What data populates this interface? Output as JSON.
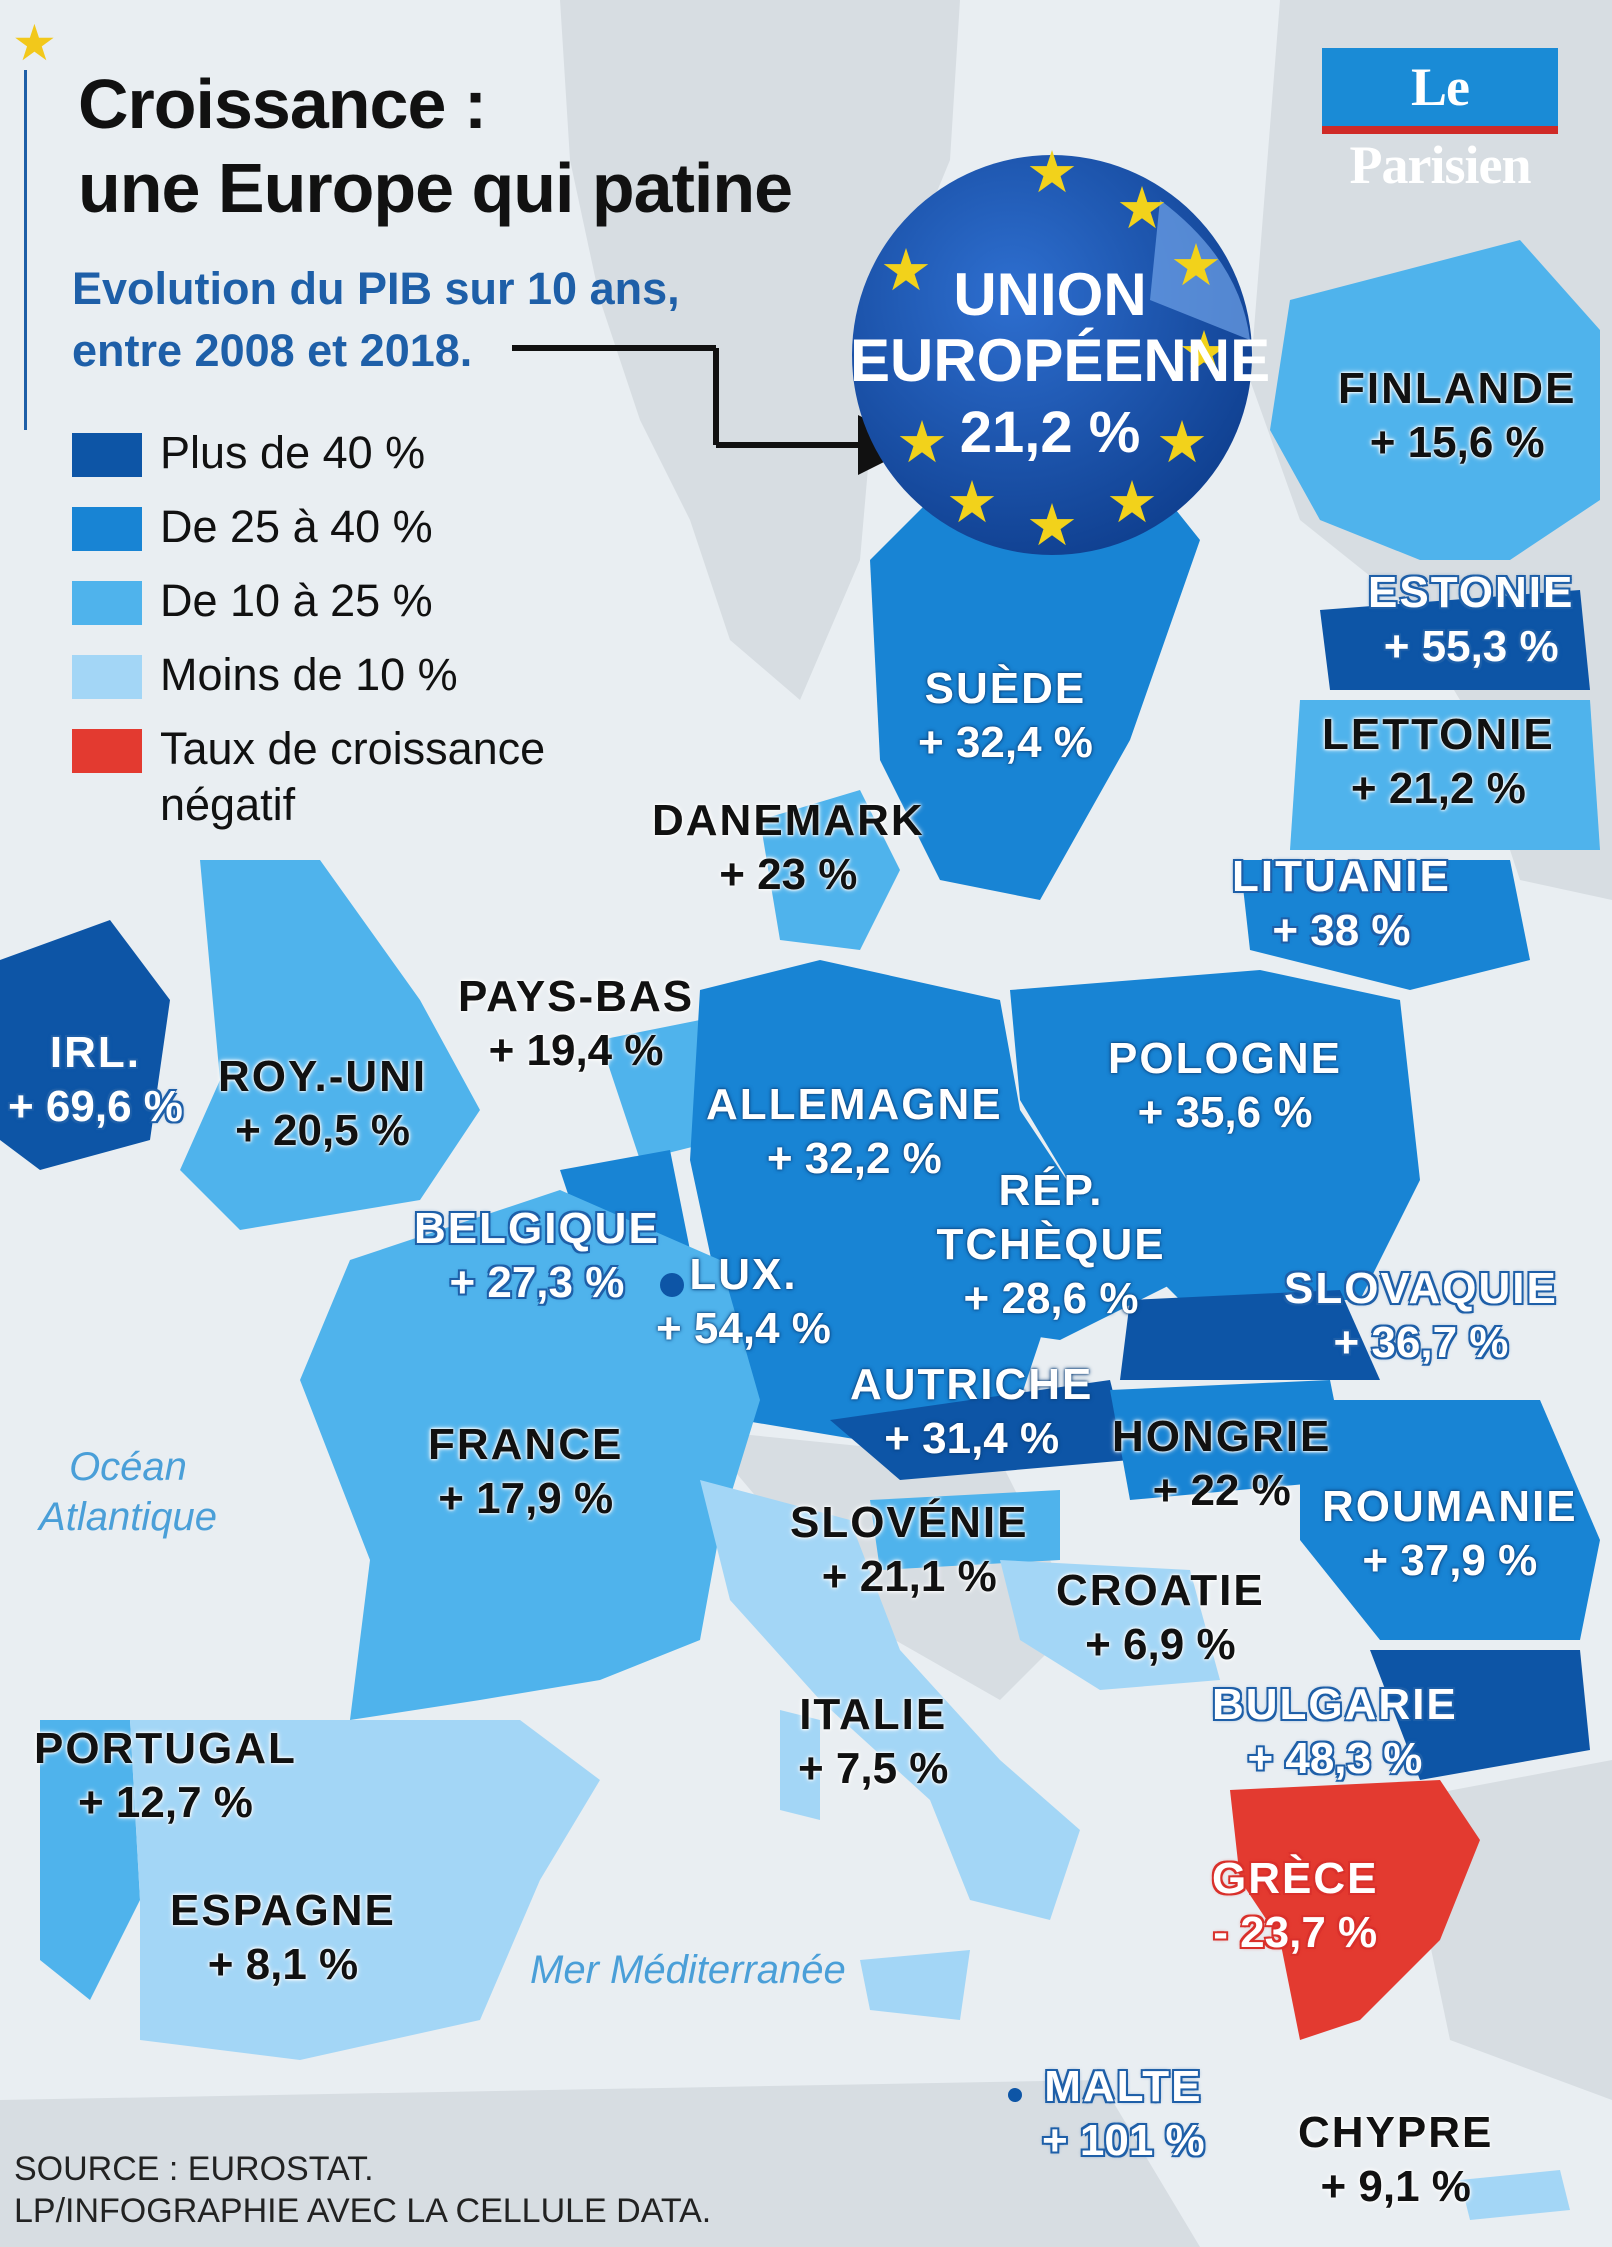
{
  "title_line1": "Croissance :",
  "title_line2": "une Europe qui patine",
  "subtitle_line1": "Evolution du PIB sur 10 ans,",
  "subtitle_line2": "entre 2008 et 2018.",
  "logo_text": "Le Parisien",
  "legend": [
    {
      "label": "Plus de 40 %",
      "color": "#0d55a6"
    },
    {
      "label": "De 25 à 40 %",
      "color": "#1884d4"
    },
    {
      "label": "De 10 à 25 %",
      "color": "#4fb3ec"
    },
    {
      "label": "Moins de 10 %",
      "color": "#a3d6f6"
    },
    {
      "label": "Taux de croissance négatif",
      "color": "#e33a30"
    }
  ],
  "eu": {
    "line1": "UNION",
    "line2": "EUROPÉENNE",
    "value": "21,2 %"
  },
  "seas": {
    "ocean_line1": "Océan",
    "ocean_line2": "Atlantique",
    "mediterranean": "Mer Méditerranée"
  },
  "countries": [
    {
      "name": "FINLANDE",
      "value": "+ 15,6 %",
      "growth": 15.6
    },
    {
      "name": "ESTONIE",
      "value": "+ 55,3 %",
      "growth": 55.3
    },
    {
      "name": "LETTONIE",
      "value": "+ 21,2 %",
      "growth": 21.2
    },
    {
      "name": "LITUANIE",
      "value": "+ 38 %",
      "growth": 38
    },
    {
      "name": "SUÈDE",
      "value": "+ 32,4 %",
      "growth": 32.4
    },
    {
      "name": "DANEMARK",
      "value": "+ 23 %",
      "growth": 23
    },
    {
      "name": "PAYS-BAS",
      "value": "+ 19,4 %",
      "growth": 19.4
    },
    {
      "name": "IRL.",
      "value": "+ 69,6 %",
      "growth": 69.6
    },
    {
      "name": "ROY.-UNI",
      "value": "+ 20,5 %",
      "growth": 20.5
    },
    {
      "name": "ALLEMAGNE",
      "value": "+ 32,2 %",
      "growth": 32.2
    },
    {
      "name": "POLOGNE",
      "value": "+ 35,6 %",
      "growth": 35.6
    },
    {
      "name": "BELGIQUE",
      "value": "+ 27,3 %",
      "growth": 27.3
    },
    {
      "name": "LUX.",
      "value": "+ 54,4 %",
      "growth": 54.4
    },
    {
      "name": "RÉP. TCHÈQUE",
      "value": "+ 28,6 %",
      "growth": 28.6
    },
    {
      "name": "SLOVAQUIE",
      "value": "+ 36,7 %",
      "growth": 36.7
    },
    {
      "name": "AUTRICHE",
      "value": "+ 31,4 %",
      "growth": 31.4
    },
    {
      "name": "HONGRIE",
      "value": "+ 22 %",
      "growth": 22
    },
    {
      "name": "FRANCE",
      "value": "+ 17,9 %",
      "growth": 17.9
    },
    {
      "name": "ROUMANIE",
      "value": "+ 37,9 %",
      "growth": 37.9
    },
    {
      "name": "SLOVÉNIE",
      "value": "+ 21,1 %",
      "growth": 21.1
    },
    {
      "name": "CROATIE",
      "value": "+ 6,9 %",
      "growth": 6.9
    },
    {
      "name": "BULGARIE",
      "value": "+ 48,3 %",
      "growth": 48.3
    },
    {
      "name": "ITALIE",
      "value": "+ 7,5 %",
      "growth": 7.5
    },
    {
      "name": "PORTUGAL",
      "value": "+ 12,7 %",
      "growth": 12.7
    },
    {
      "name": "ESPAGNE",
      "value": "+ 8,1 %",
      "growth": 8.1
    },
    {
      "name": "GRÈCE",
      "value": "- 23,7 %",
      "growth": -23.7
    },
    {
      "name": "MALTE",
      "value": "+ 101 %",
      "growth": 101
    },
    {
      "name": "CHYPRE",
      "value": "+ 9,1 %",
      "growth": 9.1
    }
  ],
  "source_line1": "SOURCE : EUROSTAT.",
  "source_line2": "LP/INFOGRAPHIE AVEC LA CELLULE DATA."
}
